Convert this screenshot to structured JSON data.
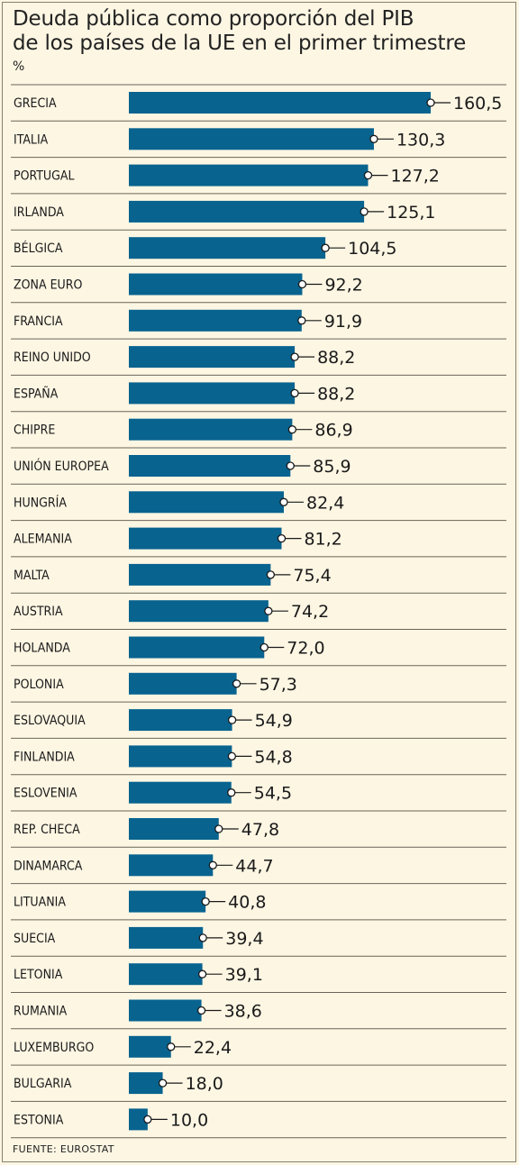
{
  "title_line1": "Deuda pública como proporción del PIB",
  "title_line2": "de los países de la UE en el primer trimestre",
  "unit": "%",
  "source": "FUENTE: EUROSTAT",
  "colors": {
    "bar": "#08638f",
    "background": "#fdf6e3",
    "rule": "#6b6458"
  },
  "chart_data": {
    "type": "bar",
    "orientation": "horizontal",
    "title": "Deuda pública como proporción del PIB de los países de la UE en el primer trimestre",
    "ylabel": "%",
    "categories": [
      "GRECIA",
      "ITALIA",
      "PORTUGAL",
      "IRLANDA",
      "BÉLGICA",
      "ZONA EURO",
      "FRANCIA",
      "REINO UNIDO",
      "ESPAÑA",
      "CHIPRE",
      "UNIÓN EUROPEA",
      "HUNGRÍA",
      "ALEMANIA",
      "MALTA",
      "AUSTRIA",
      "HOLANDA",
      "POLONIA",
      "ESLOVAQUIA",
      "FINLANDIA",
      "ESLOVENIA",
      "REP. CHECA",
      "DINAMARCA",
      "LITUANIA",
      "SUECIA",
      "LETONIA",
      "RUMANIA",
      "LUXEMBURGO",
      "BULGARIA",
      "ESTONIA"
    ],
    "values": [
      160.5,
      130.3,
      127.2,
      125.1,
      104.5,
      92.2,
      91.9,
      88.2,
      88.2,
      86.9,
      85.9,
      82.4,
      81.2,
      75.4,
      74.2,
      72.0,
      57.3,
      54.9,
      54.8,
      54.5,
      47.8,
      44.7,
      40.8,
      39.4,
      39.1,
      38.6,
      22.4,
      18.0,
      10.0
    ],
    "value_labels": [
      "160,5",
      "130,3",
      "127,2",
      "125,1",
      "104,5",
      "92,2",
      "91,9",
      "88,2",
      "88,2",
      "86,9",
      "85,9",
      "82,4",
      "81,2",
      "75,4",
      "74,2",
      "72,0",
      "57,3",
      "54,9",
      "54,8",
      "54,5",
      "47,8",
      "44,7",
      "40,8",
      "39,4",
      "39,1",
      "38,6",
      "22,4",
      "18,0",
      "10,0"
    ],
    "xlim": [
      0,
      160.5
    ],
    "grid": false,
    "legend": "none"
  }
}
